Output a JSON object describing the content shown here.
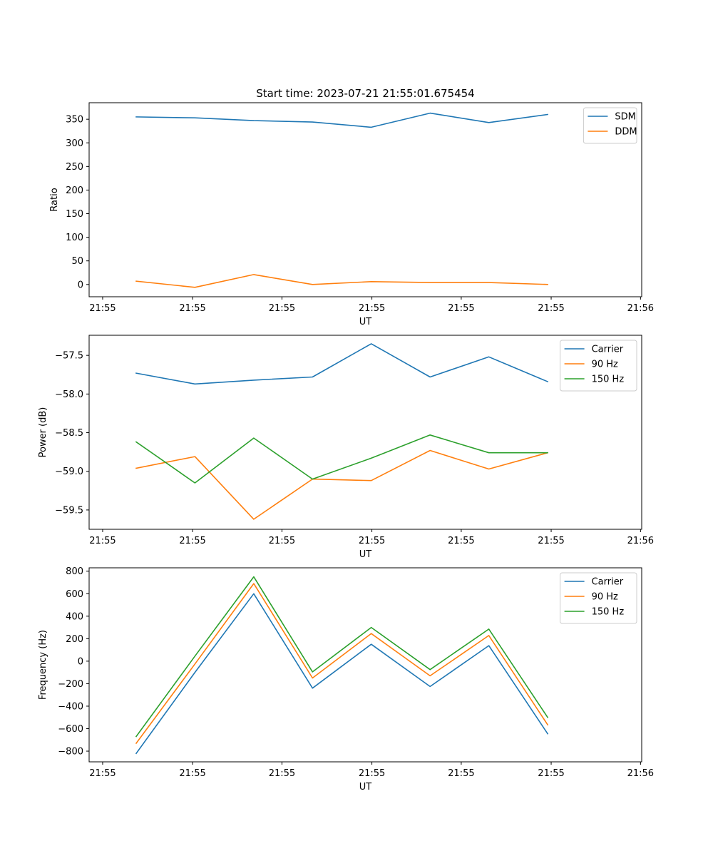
{
  "title": "Start time: 2023-07-21 21:55:01.675454",
  "colors": {
    "blue": "#1f77b4",
    "orange": "#ff7f0e",
    "green": "#2ca02c"
  },
  "chart_data": [
    {
      "type": "line",
      "title": "Start time: 2023-07-21 21:55:01.675454",
      "xlabel": "UT",
      "ylabel": "Ratio",
      "x": [
        1,
        2,
        3,
        4,
        5,
        6,
        7,
        8
      ],
      "xlim": [
        0.2,
        9.6
      ],
      "xticks": [
        0.43,
        1.96,
        3.48,
        5.01,
        6.53,
        8.06,
        9.58
      ],
      "xtick_labels": [
        "21:55",
        "21:55",
        "21:55",
        "21:55",
        "21:55",
        "21:55",
        "21:56"
      ],
      "ylim": [
        -26,
        385
      ],
      "yticks": [
        0,
        50,
        100,
        150,
        200,
        250,
        300,
        350
      ],
      "legend": "top-right",
      "series": [
        {
          "name": "SDM",
          "color": "#1f77b4",
          "values": [
            355,
            353,
            347,
            344,
            333,
            363,
            343,
            360
          ]
        },
        {
          "name": "DDM",
          "color": "#ff7f0e",
          "values": [
            7,
            -6,
            21,
            0,
            6,
            4,
            4,
            0
          ]
        }
      ]
    },
    {
      "type": "line",
      "xlabel": "UT",
      "ylabel": "Power (dB)",
      "x": [
        1,
        2,
        3,
        4,
        5,
        6,
        7,
        8
      ],
      "xlim": [
        0.2,
        9.6
      ],
      "xticks": [
        0.43,
        1.96,
        3.48,
        5.01,
        6.53,
        8.06,
        9.58
      ],
      "xtick_labels": [
        "21:55",
        "21:55",
        "21:55",
        "21:55",
        "21:55",
        "21:55",
        "21:56"
      ],
      "ylim": [
        -59.75,
        -57.24
      ],
      "yticks": [
        -59.5,
        -59.0,
        -58.5,
        -58.0,
        -57.5
      ],
      "ytick_labels": [
        "−59.5",
        "−59.0",
        "−58.5",
        "−58.0",
        "−57.5"
      ],
      "legend": "top-right",
      "series": [
        {
          "name": "Carrier",
          "color": "#1f77b4",
          "values": [
            -57.73,
            -57.87,
            -57.82,
            -57.78,
            -57.35,
            -57.78,
            -57.52,
            -57.84
          ]
        },
        {
          "name": "90 Hz",
          "color": "#ff7f0e",
          "values": [
            -58.96,
            -58.81,
            -59.62,
            -59.1,
            -59.12,
            -58.73,
            -58.97,
            -58.76
          ]
        },
        {
          "name": "150 Hz",
          "color": "#2ca02c",
          "values": [
            -58.62,
            -59.15,
            -58.57,
            -59.1,
            -58.83,
            -58.53,
            -58.76,
            -58.76
          ]
        }
      ]
    },
    {
      "type": "line",
      "xlabel": "UT",
      "ylabel": "Frequency (Hz)",
      "x": [
        1,
        2,
        3,
        4,
        5,
        6,
        7,
        8
      ],
      "xlim": [
        0.2,
        9.6
      ],
      "xticks": [
        0.43,
        1.96,
        3.48,
        5.01,
        6.53,
        8.06,
        9.58
      ],
      "xtick_labels": [
        "21:55",
        "21:55",
        "21:55",
        "21:55",
        "21:55",
        "21:55",
        "21:56"
      ],
      "ylim": [
        -895,
        830
      ],
      "yticks": [
        -800,
        -600,
        -400,
        -200,
        0,
        200,
        400,
        600,
        800
      ],
      "ytick_labels": [
        "−800",
        "−600",
        "−400",
        "−200",
        "0",
        "200",
        "400",
        "600",
        "800"
      ],
      "legend": "top-right",
      "series": [
        {
          "name": "Carrier",
          "color": "#1f77b4",
          "values": [
            -820,
            -100,
            600,
            -240,
            150,
            -225,
            138,
            -645
          ]
        },
        {
          "name": "90 Hz",
          "color": "#ff7f0e",
          "values": [
            -730,
            -25,
            690,
            -150,
            245,
            -130,
            228,
            -565
          ]
        },
        {
          "name": "150 Hz",
          "color": "#2ca02c",
          "values": [
            -670,
            45,
            750,
            -95,
            300,
            -75,
            285,
            -500
          ]
        }
      ]
    }
  ]
}
